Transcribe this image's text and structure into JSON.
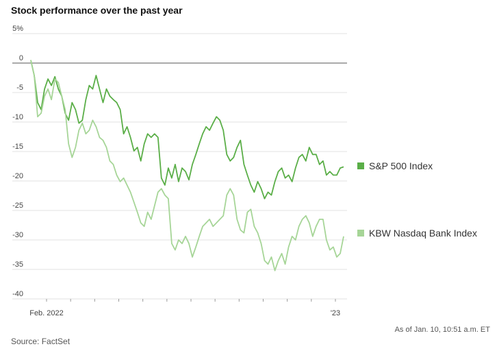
{
  "chart_data": {
    "type": "line",
    "title": "Stock performance over the past year",
    "source": "Source: FactSet",
    "note": "As of Jan. 10, 10:51 a.m. ET",
    "xtick_labels": [
      "Feb. 2022",
      "'23"
    ],
    "ylim": [
      5,
      -40
    ],
    "yticks": [
      {
        "value": 5,
        "label": "5%"
      },
      0,
      -5,
      -10,
      -15,
      -20,
      -25,
      -30,
      -35,
      -40
    ],
    "grid": true,
    "series": [
      {
        "name": "S&P 500 Index",
        "color": "#5aae47",
        "values": [
          0.5,
          -2.1,
          -6.7,
          -7.9,
          -4.4,
          -2.7,
          -3.8,
          -2.3,
          -4.4,
          -5.6,
          -8.5,
          -9.7,
          -6.7,
          -7.9,
          -10.2,
          -9.7,
          -6.2,
          -3.8,
          -4.4,
          -2.1,
          -4.4,
          -6.7,
          -4.4,
          -5.6,
          -6.2,
          -6.7,
          -7.9,
          -12,
          -10.8,
          -12.6,
          -14.9,
          -14.3,
          -16.6,
          -13.7,
          -12,
          -12.6,
          -12,
          -12.6,
          -19.5,
          -20.7,
          -17.8,
          -19.5,
          -17.2,
          -20.1,
          -17.8,
          -18.4,
          -19.8,
          -17.2,
          -15.5,
          -13.7,
          -12,
          -10.8,
          -11.4,
          -10.2,
          -9.1,
          -9.7,
          -11.4,
          -15.5,
          -16.6,
          -16,
          -14.3,
          -13.1,
          -17.2,
          -19,
          -20.7,
          -21.9,
          -20.1,
          -21.3,
          -23,
          -21.9,
          -22.4,
          -20.1,
          -18.4,
          -17.8,
          -19.5,
          -19,
          -20.1,
          -17.8,
          -16,
          -15.5,
          -16.6,
          -14.3,
          -15.5,
          -15.5,
          -17.2,
          -16.6,
          -19,
          -18.4,
          -19,
          -19,
          -17.8,
          -17.6
        ]
      },
      {
        "name": "KBW Nasdaq Bank Index",
        "color": "#a6d597",
        "values": [
          0.5,
          -2.1,
          -9.1,
          -8.5,
          -5.6,
          -4.4,
          -6.2,
          -2.7,
          -3.3,
          -5.6,
          -7.9,
          -13.7,
          -16,
          -14.3,
          -11.4,
          -10.2,
          -12,
          -11.4,
          -9.7,
          -10.8,
          -12.6,
          -13.1,
          -14.3,
          -16.6,
          -17.2,
          -19,
          -20.1,
          -19.5,
          -20.7,
          -21.9,
          -23.6,
          -25.3,
          -27.1,
          -27.7,
          -25.3,
          -26.5,
          -24.2,
          -21.9,
          -21.3,
          -22.4,
          -23,
          -30.6,
          -31.7,
          -30,
          -30.6,
          -29.4,
          -30.6,
          -32.9,
          -31.2,
          -29.4,
          -27.7,
          -27.1,
          -26.5,
          -27.7,
          -27.1,
          -26.5,
          -25.9,
          -22.4,
          -21.3,
          -22.4,
          -26.5,
          -28.3,
          -28.8,
          -25.3,
          -24.8,
          -27.7,
          -28.8,
          -30.6,
          -33.5,
          -34.1,
          -32.9,
          -35.2,
          -33.5,
          -32.3,
          -34.1,
          -31.2,
          -29.4,
          -30,
          -27.7,
          -26.5,
          -25.9,
          -27.1,
          -29.4,
          -27.7,
          -26.5,
          -26.5,
          -30,
          -31.7,
          -31.2,
          -32.9,
          -32.3,
          -29.4
        ]
      }
    ]
  }
}
